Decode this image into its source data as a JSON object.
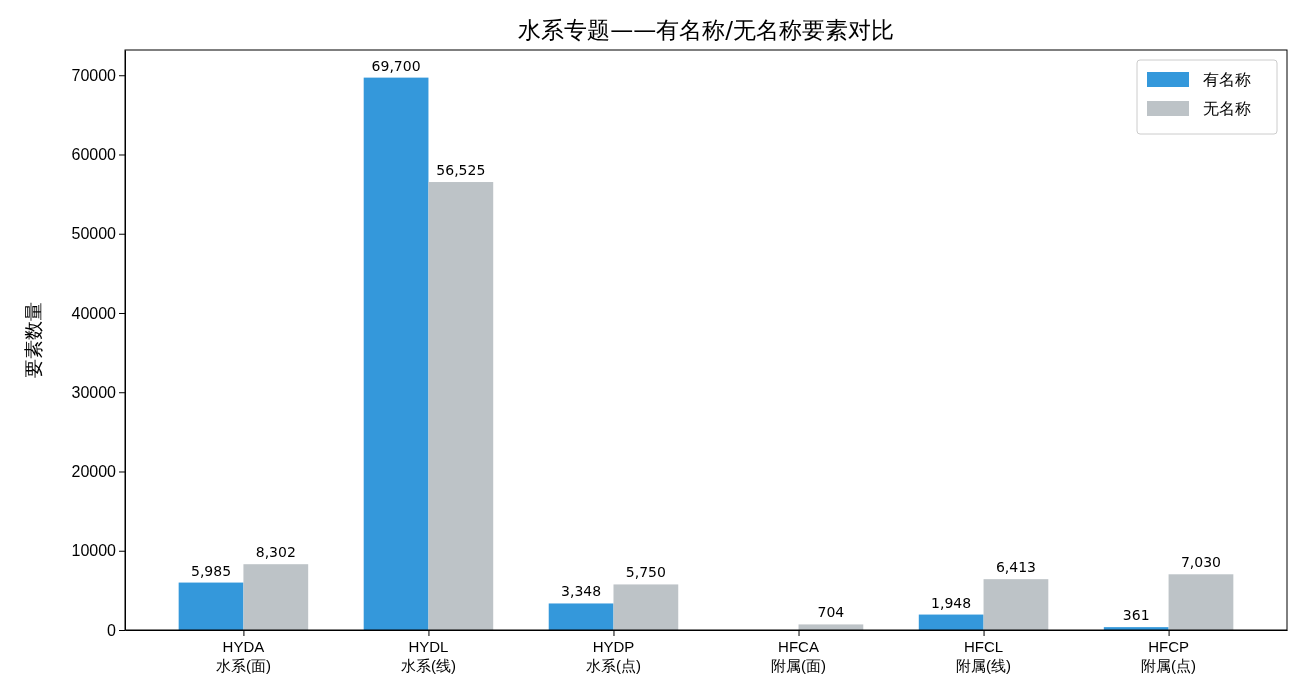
{
  "chart_data": {
    "type": "bar",
    "title": "水系专题——有名称/无名称要素对比",
    "ylabel": "要素数量",
    "categories": [
      "HYDA\n水系(面)",
      "HYDL\n水系(线)",
      "HYDP\n水系(点)",
      "HFCA\n附属(面)",
      "HFCL\n附属(线)",
      "HFCP\n附属(点)"
    ],
    "series": [
      {
        "name": "有名称",
        "color": "#3498db",
        "values": [
          5985,
          69700,
          3348,
          0,
          1948,
          361
        ],
        "value_labels": [
          "5,985",
          "69,700",
          "3,348",
          null,
          "1,948",
          "361"
        ]
      },
      {
        "name": "无名称",
        "color": "#bdc3c7",
        "values": [
          8302,
          56525,
          5750,
          704,
          6413,
          7030
        ],
        "value_labels": [
          "8,302",
          "56,525",
          "5,750",
          "704",
          "6,413",
          "7,030"
        ]
      }
    ],
    "ylim": [
      0,
      73185
    ],
    "yticks": [
      0,
      10000,
      20000,
      30000,
      40000,
      50000,
      60000,
      70000
    ],
    "legend": "top right"
  }
}
